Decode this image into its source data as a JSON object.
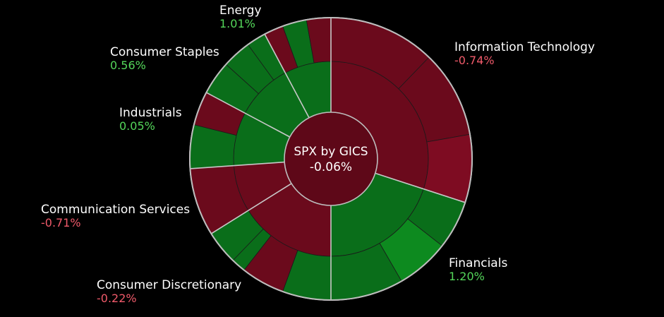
{
  "chart_data": {
    "type": "sunburst",
    "title": "SPX by GICS",
    "total_change": "-0.06%",
    "colors": {
      "up": "#0a6e1a",
      "up_bright": "#0d8a1f",
      "down": "#6b0a1c",
      "down_bright": "#7e0c22",
      "pos_text": "#54d65a",
      "neg_text": "#ef5a6a"
    },
    "sectors": [
      {
        "name": "Information Technology",
        "value": "-0.74%",
        "sign": "neg"
      },
      {
        "name": "Financials",
        "value": "1.20%",
        "sign": "pos"
      },
      {
        "name": "Consumer Discretionary",
        "value": "-0.22%",
        "sign": "neg"
      },
      {
        "name": "Communication Services",
        "value": "-0.71%",
        "sign": "neg"
      },
      {
        "name": "Industrials",
        "value": "0.05%",
        "sign": "pos"
      },
      {
        "name": "Consumer Staples",
        "value": "0.56%",
        "sign": "pos"
      },
      {
        "name": "Energy",
        "value": "1.01%",
        "sign": "pos"
      }
    ]
  }
}
